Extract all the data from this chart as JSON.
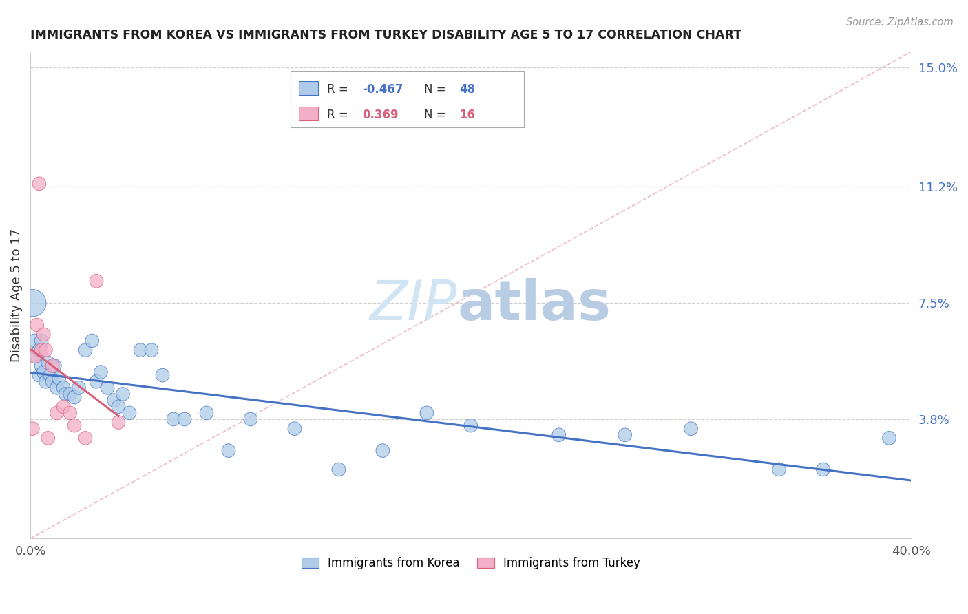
{
  "title": "IMMIGRANTS FROM KOREA VS IMMIGRANTS FROM TURKEY DISABILITY AGE 5 TO 17 CORRELATION CHART",
  "source": "Source: ZipAtlas.com",
  "ylabel": "Disability Age 5 to 17",
  "xlim": [
    0.0,
    0.4
  ],
  "ylim": [
    0.0,
    0.155
  ],
  "ytick_labels_right": [
    "15.0%",
    "11.2%",
    "7.5%",
    "3.8%"
  ],
  "ytick_values_right": [
    0.15,
    0.112,
    0.075,
    0.038
  ],
  "korea_color": "#aecce8",
  "turkey_color": "#f4afc8",
  "korea_line_color": "#4472c4",
  "turkey_line_color": "#d9607a",
  "korea_R": -0.467,
  "korea_N": 48,
  "turkey_R": 0.369,
  "turkey_N": 16,
  "legend_label_korea": "Immigrants from Korea",
  "legend_label_turkey": "Immigrants from Turkey",
  "korea_x": [
    0.001,
    0.002,
    0.003,
    0.004,
    0.004,
    0.005,
    0.005,
    0.006,
    0.007,
    0.008,
    0.009,
    0.01,
    0.011,
    0.012,
    0.013,
    0.015,
    0.016,
    0.018,
    0.02,
    0.022,
    0.025,
    0.028,
    0.03,
    0.032,
    0.035,
    0.038,
    0.04,
    0.042,
    0.045,
    0.05,
    0.055,
    0.06,
    0.065,
    0.07,
    0.08,
    0.09,
    0.1,
    0.12,
    0.14,
    0.16,
    0.18,
    0.2,
    0.24,
    0.27,
    0.3,
    0.34,
    0.36,
    0.39
  ],
  "korea_y": [
    0.075,
    0.063,
    0.058,
    0.06,
    0.052,
    0.055,
    0.063,
    0.053,
    0.05,
    0.056,
    0.052,
    0.05,
    0.055,
    0.048,
    0.051,
    0.048,
    0.046,
    0.046,
    0.045,
    0.048,
    0.06,
    0.063,
    0.05,
    0.053,
    0.048,
    0.044,
    0.042,
    0.046,
    0.04,
    0.06,
    0.06,
    0.052,
    0.038,
    0.038,
    0.04,
    0.028,
    0.038,
    0.035,
    0.022,
    0.028,
    0.04,
    0.036,
    0.033,
    0.033,
    0.035,
    0.022,
    0.022,
    0.032
  ],
  "korea_sizes": [
    800,
    200,
    200,
    200,
    200,
    200,
    200,
    200,
    200,
    200,
    200,
    200,
    200,
    200,
    200,
    200,
    200,
    200,
    200,
    200,
    200,
    200,
    200,
    200,
    200,
    200,
    200,
    200,
    200,
    200,
    200,
    200,
    200,
    200,
    200,
    200,
    200,
    200,
    200,
    200,
    200,
    200,
    200,
    200,
    200,
    200,
    200,
    200
  ],
  "turkey_x": [
    0.001,
    0.002,
    0.003,
    0.004,
    0.005,
    0.006,
    0.007,
    0.008,
    0.01,
    0.012,
    0.015,
    0.018,
    0.02,
    0.025,
    0.03,
    0.04
  ],
  "turkey_y": [
    0.035,
    0.058,
    0.068,
    0.113,
    0.06,
    0.065,
    0.06,
    0.032,
    0.055,
    0.04,
    0.042,
    0.04,
    0.036,
    0.032,
    0.082,
    0.037
  ],
  "turkey_sizes": [
    200,
    200,
    200,
    200,
    200,
    200,
    200,
    200,
    200,
    200,
    200,
    200,
    200,
    200,
    200,
    200
  ],
  "diag_color": "#e8b4c0",
  "grid_color": "#d0d0d0",
  "watermark_color": "#d0e4f4"
}
